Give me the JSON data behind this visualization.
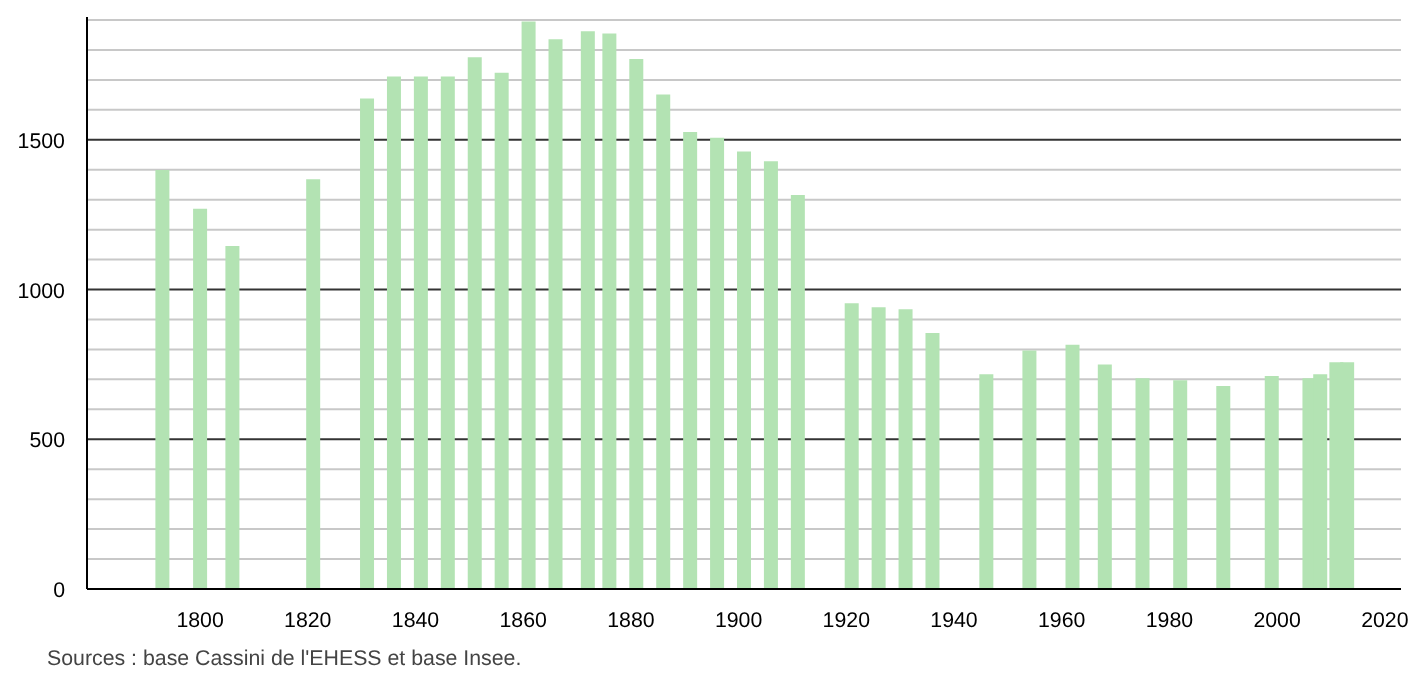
{
  "chart_data": {
    "type": "bar",
    "x": [
      1793,
      1800,
      1806,
      1821,
      1831,
      1836,
      1841,
      1846,
      1851,
      1856,
      1861,
      1866,
      1872,
      1876,
      1881,
      1886,
      1891,
      1896,
      1901,
      1906,
      1911,
      1921,
      1926,
      1931,
      1936,
      1946,
      1954,
      1962,
      1968,
      1975,
      1982,
      1990,
      1999,
      2006,
      2008,
      2011,
      2013
    ],
    "values": [
      1399,
      1270,
      1145,
      1368,
      1638,
      1711,
      1711,
      1711,
      1776,
      1724,
      1895,
      1836,
      1862,
      1855,
      1770,
      1651,
      1526,
      1507,
      1461,
      1428,
      1316,
      954,
      941,
      934,
      855,
      717,
      796,
      816,
      750,
      704,
      697,
      678,
      711,
      704,
      717,
      757,
      757
    ],
    "color": "#b3e3b3",
    "xlim": [
      1779,
      2023
    ],
    "xticks": [
      1800,
      1820,
      1840,
      1860,
      1880,
      1900,
      1920,
      1940,
      1960,
      1980,
      2000,
      2020
    ],
    "ylim": [
      0,
      1910
    ],
    "yticks": [
      0,
      {
        "value": 100,
        "label": null
      },
      {
        "value": 200,
        "label": null
      },
      {
        "value": 300,
        "label": null
      },
      {
        "value": 400,
        "label": null
      },
      500,
      {
        "value": 600,
        "label": null
      },
      {
        "value": 700,
        "label": null
      },
      {
        "value": 800,
        "label": null
      },
      {
        "value": 900,
        "label": null
      },
      1000,
      {
        "value": 1100,
        "label": null
      },
      {
        "value": 1200,
        "label": null
      },
      {
        "value": 1300,
        "label": null
      },
      {
        "value": 1400,
        "label": null
      },
      1500,
      {
        "value": 1600,
        "label": null
      },
      {
        "value": 1700,
        "label": null
      },
      {
        "value": 1800,
        "label": null
      },
      {
        "value": 1900,
        "label": null
      }
    ],
    "grid": "y",
    "annotations": [
      "Sources : base Cassini de l'EHESS et base Insee."
    ]
  }
}
